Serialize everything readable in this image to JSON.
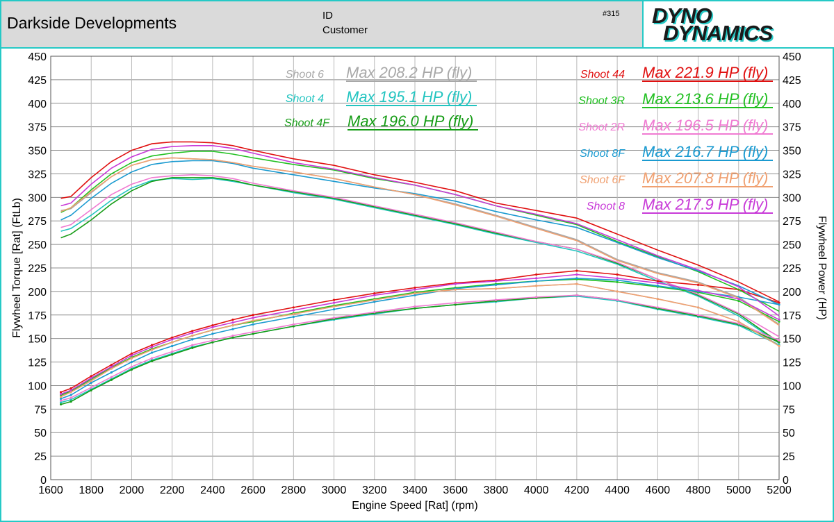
{
  "header": {
    "company": "Darkside Developments",
    "id_label": "ID",
    "customer_label": "Customer",
    "run_number": "#315",
    "logo_line1": "DYNO",
    "logo_line2": "DYNAMICS"
  },
  "chart_data": {
    "type": "line",
    "title": "",
    "xlabel": "Engine Speed [Rat] (rpm)",
    "ylabel": "Flywheel Torque [Rat] (FtLb)",
    "ylabel_right": "Flywheel Power (HP)",
    "xlim": [
      1600,
      5200
    ],
    "ylim": [
      0,
      450
    ],
    "y2lim": [
      0,
      450
    ],
    "grid": true,
    "x_ticks": [
      1600,
      1800,
      2000,
      2200,
      2400,
      2600,
      2800,
      3000,
      3200,
      3400,
      3600,
      3800,
      4000,
      4200,
      4400,
      4600,
      4800,
      5000,
      5200
    ],
    "y_ticks": [
      0,
      25,
      50,
      75,
      100,
      125,
      150,
      175,
      200,
      225,
      250,
      275,
      300,
      325,
      350,
      375,
      400,
      425,
      450
    ],
    "legend_placement": "top",
    "x": [
      1650,
      1700,
      1800,
      1900,
      2000,
      2100,
      2200,
      2300,
      2400,
      2500,
      2600,
      2800,
      3000,
      3200,
      3400,
      3600,
      3800,
      4000,
      4200,
      4400,
      4600,
      4800,
      5000,
      5200
    ],
    "series": [
      {
        "name": "Shoot 6",
        "max_label": "Max 208.2 HP (fly)",
        "color": "#a8a8a8",
        "torque": [
          286,
          288,
          305,
          322,
          334,
          340,
          342,
          341,
          340,
          337,
          333,
          327,
          320,
          311,
          303,
          293,
          281,
          268,
          255,
          234,
          220,
          210,
          194,
          165
        ],
        "power": [
          89,
          94,
          106,
          118,
          129,
          138,
          146,
          153,
          159,
          164,
          169,
          176,
          184,
          191,
          198,
          202,
          203,
          206,
          208,
          200,
          192,
          183,
          168,
          143
        ]
      },
      {
        "name": "Shoot 4",
        "max_label": "Max 195.1 HP (fly)",
        "color": "#22c4c0",
        "torque": [
          264,
          267,
          281,
          297,
          310,
          318,
          320,
          319,
          320,
          317,
          313,
          305,
          298,
          289,
          280,
          271,
          261,
          252,
          243,
          229,
          211,
          195,
          174,
          145
        ],
        "power": [
          82,
          85,
          96,
          107,
          118,
          127,
          134,
          141,
          146,
          151,
          155,
          163,
          170,
          176,
          182,
          186,
          189,
          193,
          195,
          190,
          181,
          173,
          164,
          143
        ]
      },
      {
        "name": "Shoot 4F",
        "max_label": "Max 196.0 HP (fly)",
        "color": "#169c16",
        "torque": [
          257,
          261,
          276,
          293,
          307,
          317,
          321,
          321,
          321,
          318,
          313,
          306,
          299,
          290,
          281,
          272,
          262,
          253,
          245,
          230,
          213,
          196,
          176,
          146
        ],
        "power": [
          80,
          83,
          95,
          106,
          117,
          126,
          133,
          140,
          146,
          151,
          155,
          163,
          171,
          177,
          182,
          186,
          190,
          193,
          196,
          191,
          182,
          174,
          165,
          146
        ]
      },
      {
        "name": "Shoot 44",
        "max_label": "Max 221.9 HP (fly)",
        "color": "#e01010",
        "torque": [
          299,
          301,
          321,
          338,
          350,
          357,
          359,
          359,
          358,
          355,
          350,
          341,
          334,
          324,
          316,
          307,
          294,
          286,
          278,
          261,
          244,
          228,
          210,
          189
        ],
        "power": [
          93,
          97,
          110,
          122,
          134,
          143,
          151,
          158,
          164,
          170,
          175,
          183,
          191,
          198,
          204,
          209,
          212,
          218,
          222,
          218,
          211,
          207,
          202,
          188
        ]
      },
      {
        "name": "Shoot 3R",
        "max_label": "Max 213.6 HP (fly)",
        "color": "#22c022",
        "torque": [
          284,
          289,
          308,
          325,
          337,
          344,
          347,
          349,
          349,
          346,
          342,
          335,
          329,
          320,
          313,
          303,
          291,
          281,
          271,
          253,
          237,
          221,
          202,
          179
        ],
        "power": [
          90,
          94,
          107,
          119,
          130,
          139,
          146,
          153,
          159,
          164,
          168,
          177,
          185,
          192,
          199,
          204,
          208,
          211,
          213,
          210,
          205,
          199,
          190,
          168
        ]
      },
      {
        "name": "Shoot 2R",
        "max_label": "Max 196.5 HP (fly)",
        "color": "#f07ad2",
        "torque": [
          268,
          271,
          287,
          303,
          314,
          321,
          323,
          324,
          323,
          320,
          315,
          307,
          300,
          291,
          282,
          273,
          263,
          253,
          245,
          231,
          213,
          197,
          177,
          152
        ],
        "power": [
          84,
          87,
          98,
          109,
          120,
          129,
          136,
          143,
          148,
          153,
          157,
          165,
          172,
          178,
          184,
          188,
          191,
          194,
          196,
          191,
          183,
          175,
          166,
          148
        ]
      },
      {
        "name": "Shoot 8F",
        "max_label": "Max 216.7 HP (fly)",
        "color": "#1a9ad0",
        "torque": [
          276,
          281,
          299,
          315,
          327,
          335,
          338,
          339,
          339,
          336,
          331,
          324,
          317,
          310,
          304,
          296,
          285,
          276,
          268,
          252,
          236,
          222,
          206,
          186
        ],
        "power": [
          86,
          90,
          103,
          114,
          125,
          135,
          142,
          149,
          155,
          160,
          165,
          173,
          181,
          189,
          196,
          203,
          207,
          211,
          214,
          212,
          206,
          200,
          194,
          186
        ]
      },
      {
        "name": "Shoot 6F",
        "max_label": "Max 207.8 HP (fly)",
        "color": "#f0a070",
        "torque": [
          285,
          289,
          306,
          322,
          334,
          340,
          342,
          341,
          340,
          337,
          333,
          327,
          320,
          311,
          303,
          292,
          280,
          267,
          254,
          233,
          219,
          209,
          193,
          164
        ],
        "power": [
          88,
          93,
          105,
          118,
          129,
          138,
          146,
          153,
          159,
          164,
          169,
          176,
          184,
          191,
          198,
          202,
          203,
          206,
          208,
          200,
          192,
          183,
          168,
          142
        ]
      },
      {
        "name": "Shoot 8",
        "max_label": "Max 217.9 HP (fly)",
        "color": "#c83ad8",
        "torque": [
          291,
          294,
          314,
          331,
          343,
          351,
          354,
          355,
          355,
          352,
          347,
          337,
          330,
          321,
          313,
          303,
          291,
          282,
          272,
          255,
          238,
          223,
          205,
          174
        ],
        "power": [
          91,
          95,
          108,
          120,
          132,
          141,
          149,
          156,
          162,
          167,
          172,
          180,
          188,
          196,
          202,
          208,
          211,
          214,
          218,
          214,
          209,
          201,
          192,
          170
        ]
      }
    ]
  }
}
